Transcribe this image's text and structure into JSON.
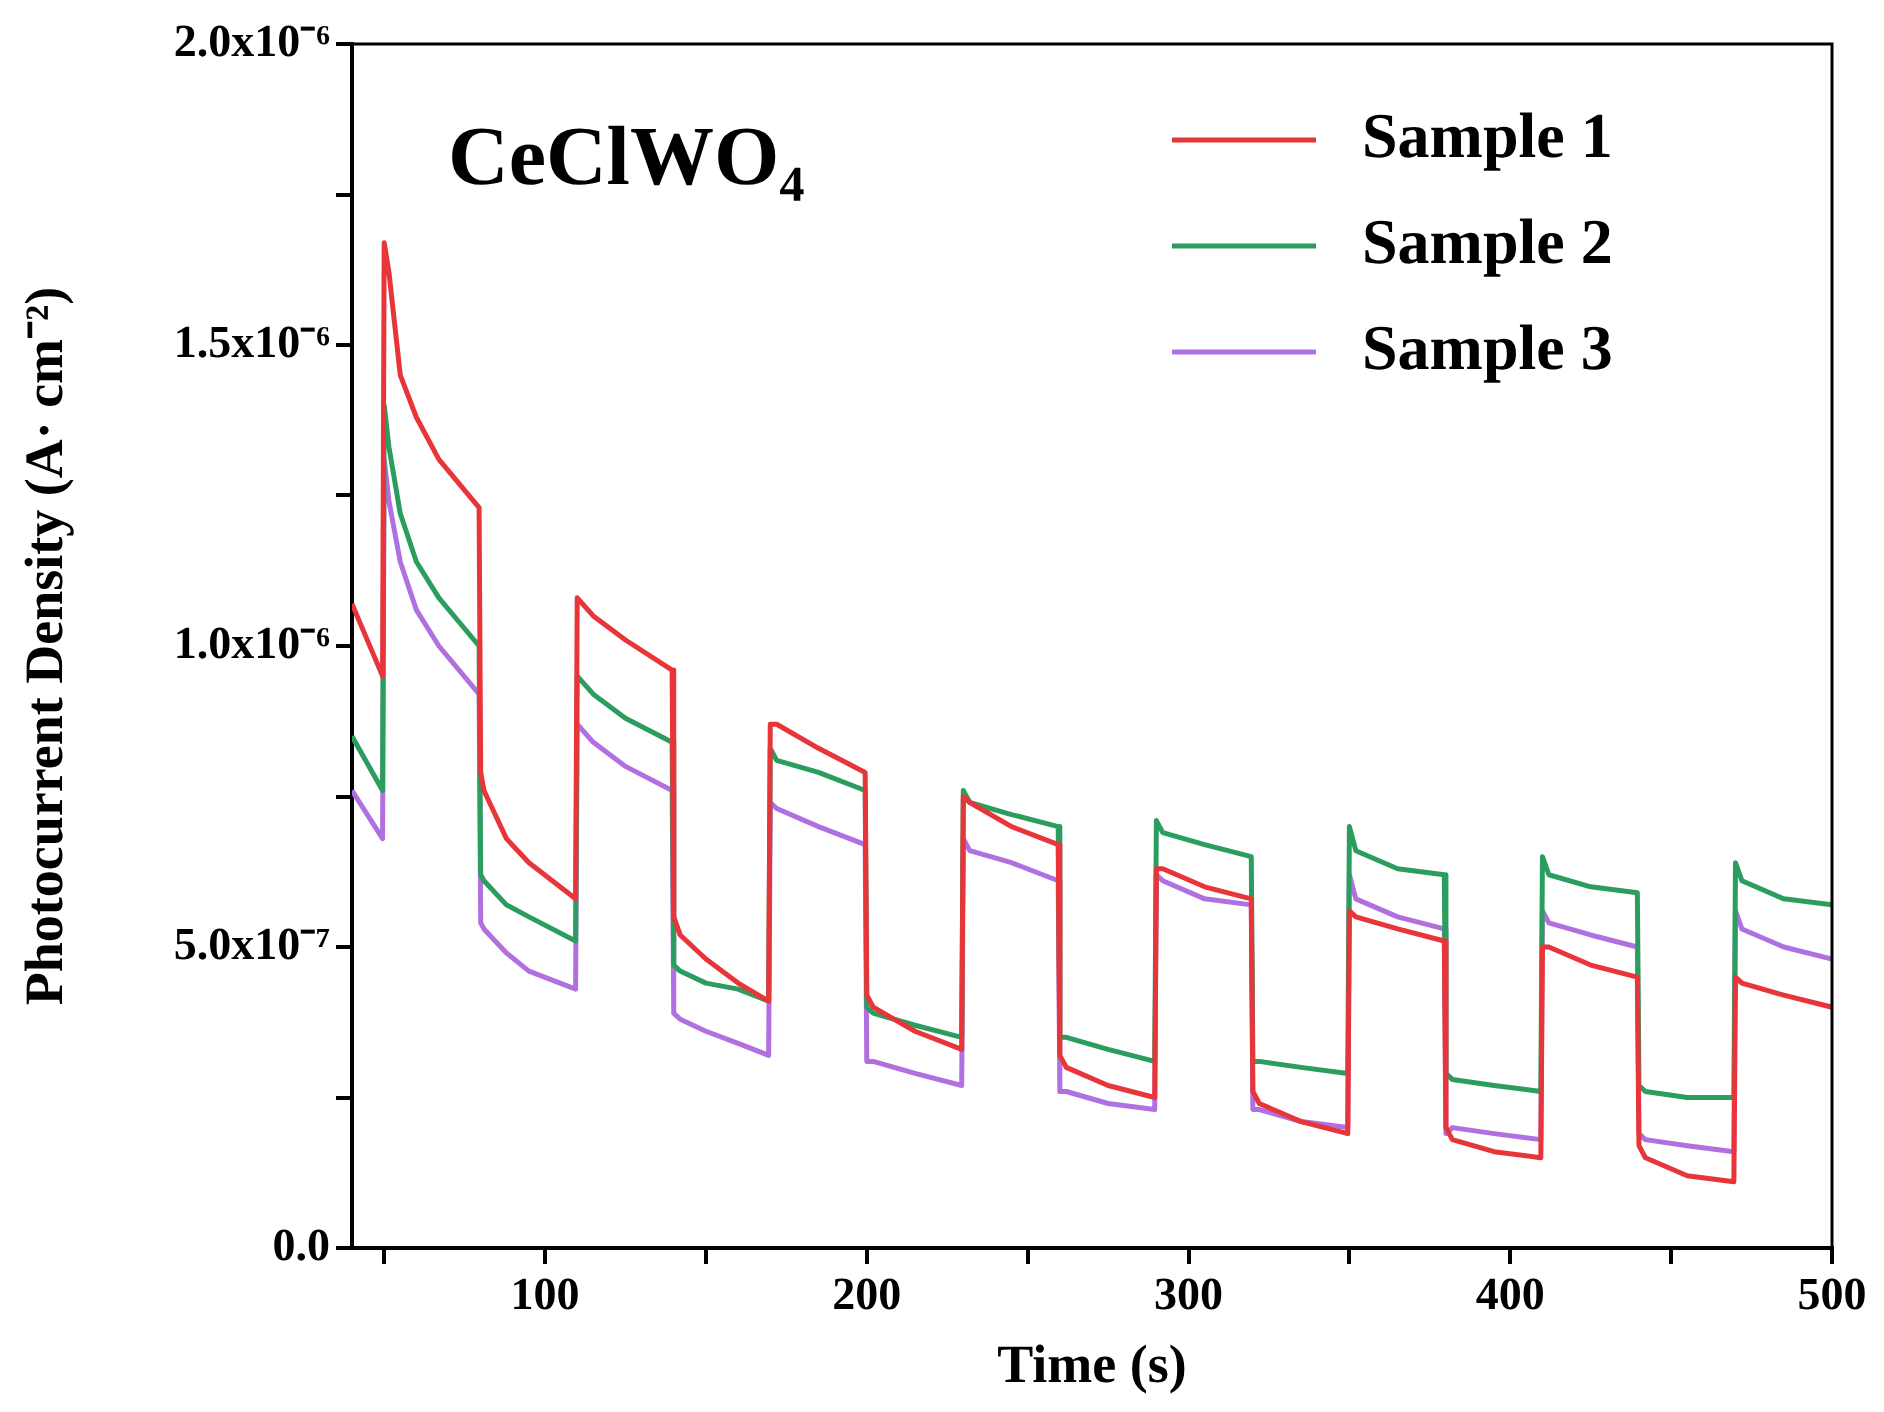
{
  "chart_data": {
    "type": "line",
    "xlabel": "Time (s)",
    "ylabel": "Photocurrent Density (A· cm⁻²)",
    "annotations": [
      "CeClWO₄"
    ],
    "legend": "top right",
    "grid": false,
    "xlim": [
      40,
      500
    ],
    "xticks": [
      {
        "value": 50,
        "label": null
      },
      100,
      {
        "value": 150,
        "label": null
      },
      200,
      {
        "value": 250,
        "label": null
      },
      300,
      {
        "value": 350,
        "label": null
      },
      400,
      {
        "value": 450,
        "label": null
      },
      500
    ],
    "ylim": [
      0,
      2e-06
    ],
    "yticks": [
      {
        "value": 0,
        "label": "0.0"
      },
      {
        "value": 2.5e-07,
        "label": null
      },
      {
        "value": 5e-07,
        "label": "5.0x10⁻⁷"
      },
      {
        "value": 7.5e-07,
        "label": null
      },
      {
        "value": 1e-06,
        "label": "1.0x10⁻⁶"
      },
      {
        "value": 1.25e-06,
        "label": null
      },
      {
        "value": 1.5e-06,
        "label": "1.5x10⁻⁶"
      },
      {
        "value": 1.75e-06,
        "label": null
      },
      {
        "value": 2e-06,
        "label": "2.0x10⁻⁶"
      }
    ],
    "x": [
      40,
      49.5,
      50,
      51.5,
      55,
      60,
      67,
      79.5,
      80,
      81,
      88,
      95,
      109.5,
      110,
      115,
      125,
      139.5,
      140,
      142,
      150,
      160,
      169.5,
      170,
      172,
      185,
      199.5,
      200,
      202,
      215,
      229.5,
      230,
      232,
      245,
      259.5,
      260,
      262,
      275,
      289.5,
      290,
      292,
      305,
      319.5,
      320,
      322,
      335,
      349.5,
      350,
      352,
      365,
      379.5,
      380,
      382,
      395,
      409.5,
      410,
      412,
      425,
      439.5,
      440,
      442,
      455,
      469.5,
      470,
      472,
      485,
      500
    ],
    "series": [
      {
        "name": "Sample 1",
        "color": "#e8353a",
        "values": [
          1.07e-06,
          9.5e-07,
          1.67e-06,
          1.62e-06,
          1.45e-06,
          1.38e-06,
          1.31e-06,
          1.23e-06,
          7.9e-07,
          7.6e-07,
          6.8e-07,
          6.4e-07,
          5.8e-07,
          1.08e-06,
          1.05e-06,
          1.01e-06,
          9.6e-07,
          5.5e-07,
          5.2e-07,
          4.8e-07,
          4.4e-07,
          4.1e-07,
          8.7e-07,
          8.7e-07,
          8.3e-07,
          7.9e-07,
          4.2e-07,
          4e-07,
          3.6e-07,
          3.3e-07,
          7.5e-07,
          7.4e-07,
          7e-07,
          6.7e-07,
          3.2e-07,
          3e-07,
          2.7e-07,
          2.5e-07,
          6.3e-07,
          6.3e-07,
          6e-07,
          5.8e-07,
          2.6e-07,
          2.4e-07,
          2.1e-07,
          1.9e-07,
          5.6e-07,
          5.5e-07,
          5.3e-07,
          5.1e-07,
          2e-07,
          1.8e-07,
          1.6e-07,
          1.5e-07,
          5e-07,
          5e-07,
          4.7e-07,
          4.5e-07,
          1.7e-07,
          1.5e-07,
          1.2e-07,
          1.1e-07,
          4.5e-07,
          4.4e-07,
          4.2e-07,
          4e-07
        ]
      },
      {
        "name": "Sample 2",
        "color": "#2a9d5f",
        "values": [
          8.5e-07,
          7.6e-07,
          1.4e-06,
          1.33e-06,
          1.22e-06,
          1.14e-06,
          1.08e-06,
          1e-06,
          6.2e-07,
          6.1e-07,
          5.7e-07,
          5.5e-07,
          5.1e-07,
          9.5e-07,
          9.2e-07,
          8.8e-07,
          8.4e-07,
          4.7e-07,
          4.6e-07,
          4.4e-07,
          4.3e-07,
          4.1e-07,
          8.3e-07,
          8.1e-07,
          7.9e-07,
          7.6e-07,
          4e-07,
          3.9e-07,
          3.7e-07,
          3.5e-07,
          7.6e-07,
          7.4e-07,
          7.2e-07,
          7e-07,
          3.5e-07,
          3.5e-07,
          3.3e-07,
          3.1e-07,
          7.1e-07,
          6.9e-07,
          6.7e-07,
          6.5e-07,
          3.1e-07,
          3.1e-07,
          3e-07,
          2.9e-07,
          7e-07,
          6.6e-07,
          6.3e-07,
          6.2e-07,
          2.9e-07,
          2.8e-07,
          2.7e-07,
          2.6e-07,
          6.5e-07,
          6.2e-07,
          6e-07,
          5.9e-07,
          2.7e-07,
          2.6e-07,
          2.5e-07,
          2.5e-07,
          6.4e-07,
          6.1e-07,
          5.8e-07,
          5.7e-07
        ]
      },
      {
        "name": "Sample 3",
        "color": "#b070e0",
        "values": [
          7.6e-07,
          6.8e-07,
          1.31e-06,
          1.24e-06,
          1.14e-06,
          1.06e-06,
          1e-06,
          9.2e-07,
          5.4e-07,
          5.3e-07,
          4.9e-07,
          4.6e-07,
          4.3e-07,
          8.7e-07,
          8.4e-07,
          8e-07,
          7.6e-07,
          3.9e-07,
          3.8e-07,
          3.6e-07,
          3.4e-07,
          3.2e-07,
          7.4e-07,
          7.3e-07,
          7e-07,
          6.7e-07,
          3.1e-07,
          3.1e-07,
          2.9e-07,
          2.7e-07,
          6.8e-07,
          6.6e-07,
          6.4e-07,
          6.1e-07,
          2.6e-07,
          2.6e-07,
          2.4e-07,
          2.3e-07,
          6.2e-07,
          6.1e-07,
          5.8e-07,
          5.7e-07,
          2.3e-07,
          2.3e-07,
          2.1e-07,
          2e-07,
          6.2e-07,
          5.8e-07,
          5.5e-07,
          5.3e-07,
          1.9e-07,
          2e-07,
          1.9e-07,
          1.8e-07,
          5.6e-07,
          5.4e-07,
          5.2e-07,
          5e-07,
          1.9e-07,
          1.8e-07,
          1.7e-07,
          1.6e-07,
          5.6e-07,
          5.3e-07,
          5e-07,
          4.8e-07
        ]
      }
    ]
  }
}
